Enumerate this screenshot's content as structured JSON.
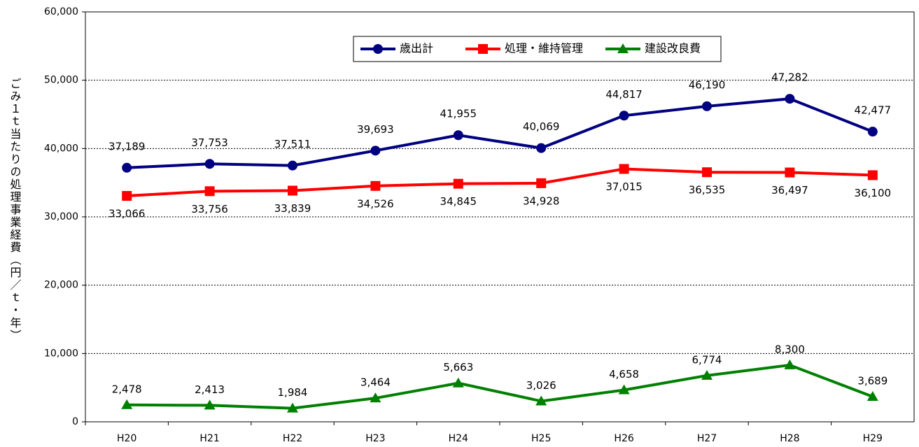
{
  "chart_data": {
    "type": "line",
    "y_label": "ごみ１ｔ当たりの処理事業経費（円／ｔ・年）",
    "categories": [
      "H20",
      "H21",
      "H22",
      "H23",
      "H24",
      "H25",
      "H26",
      "H27",
      "H28",
      "H29"
    ],
    "series": [
      {
        "name": "歳出計",
        "color": "#000080",
        "marker": "circle",
        "values": [
          37189,
          37753,
          37511,
          39693,
          41955,
          40069,
          44817,
          46190,
          47282,
          42477
        ],
        "value_labels": [
          "37,189",
          "37,753",
          "37,511",
          "39,693",
          "41,955",
          "40,069",
          "44,817",
          "46,190",
          "47,282",
          "42,477"
        ]
      },
      {
        "name": "処理・維持管理",
        "color": "#ff0000",
        "marker": "square",
        "values": [
          33066,
          33756,
          33839,
          34526,
          34845,
          34928,
          37015,
          36535,
          36497,
          36100
        ],
        "value_labels": [
          "33,066",
          "33,756",
          "33,839",
          "34,526",
          "34,845",
          "34,928",
          "37,015",
          "36,535",
          "36,497",
          "36,100"
        ]
      },
      {
        "name": "建設改良費",
        "color": "#008000",
        "marker": "triangle",
        "values": [
          2478,
          2413,
          1984,
          3464,
          5663,
          3026,
          4658,
          6774,
          8300,
          3689
        ],
        "value_labels": [
          "2,478",
          "2,413",
          "1,984",
          "3,464",
          "5,663",
          "3,026",
          "4,658",
          "6,774",
          "8,300",
          "3,689"
        ]
      }
    ],
    "ylim": [
      0,
      60000
    ],
    "yticks": [
      0,
      {
        "value": 10000,
        "label": "10,000"
      },
      {
        "value": 20000,
        "label": "20,000"
      },
      {
        "value": 30000,
        "label": "30,000"
      },
      {
        "value": 40000,
        "label": "40,000"
      },
      {
        "value": 50000,
        "label": "50,000"
      },
      {
        "value": 60000,
        "label": "60,000"
      }
    ],
    "grid": true,
    "legend": "top"
  }
}
